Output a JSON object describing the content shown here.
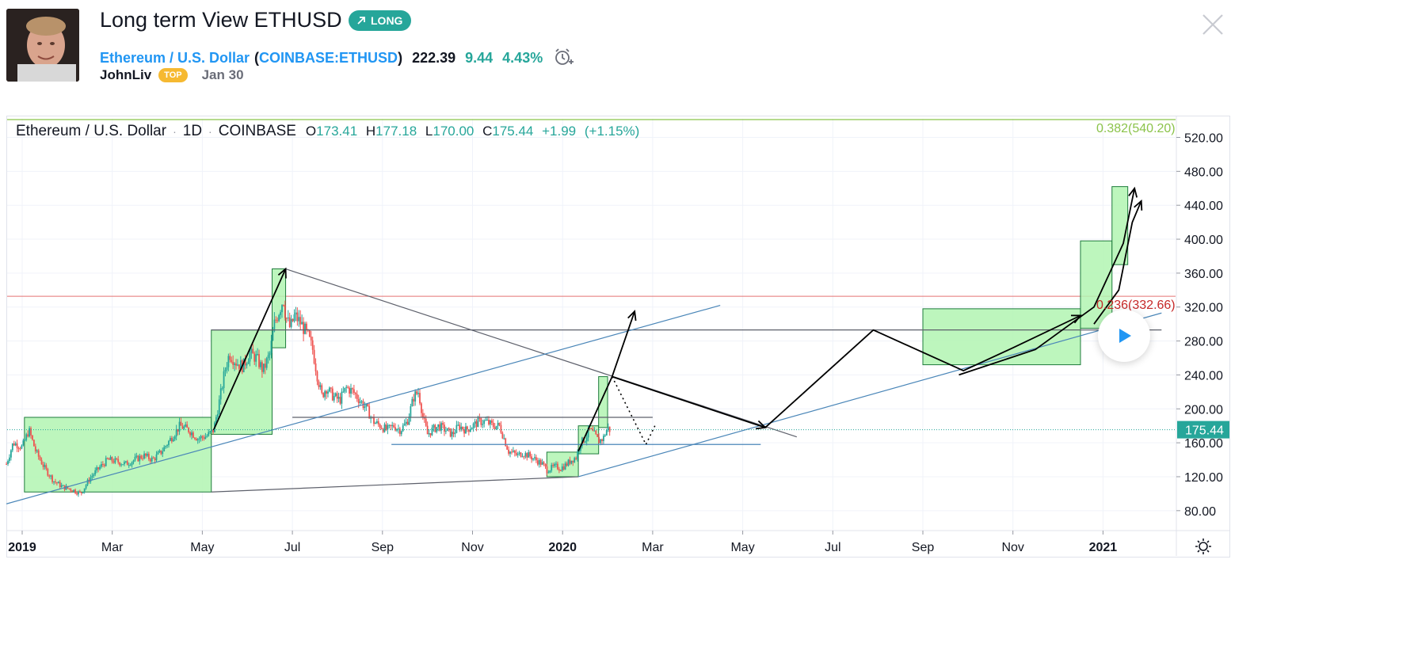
{
  "idea": {
    "title": "Long term View ETHUSD",
    "direction_label": "LONG",
    "symbol_name": "Ethereum / U.S. Dollar",
    "symbol_paren_open": "(",
    "symbol_code": "COINBASE:ETHUSD",
    "symbol_paren_close": ")",
    "price": "222.39",
    "change": "9.44",
    "change_pct": "4.43%",
    "author": "JohnLiv",
    "author_badge": "TOP",
    "date": "Jan 30",
    "icons": {
      "direction": "arrow-up-right-icon",
      "alarm": "alarm-clock-plus-icon",
      "close": "close-icon",
      "play": "play-icon",
      "settings": "gear-icon"
    }
  },
  "legend": {
    "symbol": "Ethereum / U.S. Dollar",
    "interval": "1D",
    "exchange": "COINBASE",
    "open_label": "O",
    "open": "173.41",
    "high_label": "H",
    "high": "177.18",
    "low_label": "L",
    "low": "170.00",
    "close_label": "C",
    "close": "175.44",
    "change": "+1.99",
    "change_pct": "(+1.15%)"
  },
  "colors": {
    "up": "#26a69a",
    "down": "#ef5350",
    "accent": "#2196f3",
    "box_fill": "#b2f5b2",
    "box_stroke": "#1e7b3c",
    "fib_038": "#8bc34a",
    "fib_024": "#e57373"
  },
  "chart_data": {
    "type": "candlestick",
    "symbol": "Ethereum / U.S. Dollar",
    "interval": "1D",
    "ylim": [
      65,
      545
    ],
    "y_ticks": [
      80,
      120,
      160,
      200,
      240,
      280,
      320,
      360,
      400,
      440,
      480,
      520
    ],
    "y_tick_labels": [
      "80.00",
      "120.00",
      "160.00",
      "200.00",
      "240.00",
      "280.00",
      "320.00",
      "360.00",
      "400.00",
      "440.00",
      "480.00",
      "520.00"
    ],
    "x_ticks": [
      {
        "label": "2019",
        "t": 0.0,
        "bold": true
      },
      {
        "label": "Mar",
        "t": 2.0
      },
      {
        "label": "May",
        "t": 4.0
      },
      {
        "label": "Jul",
        "t": 6.0
      },
      {
        "label": "Sep",
        "t": 8.0
      },
      {
        "label": "Nov",
        "t": 10.0
      },
      {
        "label": "2020",
        "t": 12.0,
        "bold": true
      },
      {
        "label": "Mar",
        "t": 14.0
      },
      {
        "label": "May",
        "t": 16.0
      },
      {
        "label": "Jul",
        "t": 18.0
      },
      {
        "label": "Sep",
        "t": 20.0
      },
      {
        "label": "Nov",
        "t": 22.0
      },
      {
        "label": "2021",
        "t": 24.0,
        "bold": true
      }
    ],
    "last_price": 175.44,
    "last_price_label": "175.44",
    "price_path": [
      [
        -0.35,
        135
      ],
      [
        -0.2,
        160
      ],
      [
        0,
        155
      ],
      [
        0.15,
        175
      ],
      [
        0.3,
        150
      ],
      [
        0.5,
        130
      ],
      [
        0.7,
        115
      ],
      [
        0.9,
        108
      ],
      [
        1.1,
        105
      ],
      [
        1.3,
        100
      ],
      [
        1.5,
        118
      ],
      [
        1.7,
        130
      ],
      [
        1.9,
        140
      ],
      [
        2.1,
        138
      ],
      [
        2.3,
        135
      ],
      [
        2.5,
        140
      ],
      [
        2.7,
        145
      ],
      [
        2.9,
        140
      ],
      [
        3.1,
        150
      ],
      [
        3.3,
        165
      ],
      [
        3.5,
        180
      ],
      [
        3.7,
        175
      ],
      [
        3.9,
        165
      ],
      [
        4.1,
        168
      ],
      [
        4.25,
        175
      ],
      [
        4.4,
        215
      ],
      [
        4.5,
        245
      ],
      [
        4.6,
        265
      ],
      [
        4.75,
        255
      ],
      [
        4.9,
        250
      ],
      [
        5.05,
        265
      ],
      [
        5.2,
        260
      ],
      [
        5.35,
        245
      ],
      [
        5.5,
        265
      ],
      [
        5.6,
        300
      ],
      [
        5.7,
        315
      ],
      [
        5.8,
        330
      ],
      [
        5.85,
        310
      ],
      [
        5.95,
        295
      ],
      [
        6.05,
        310
      ],
      [
        6.2,
        300
      ],
      [
        6.35,
        285
      ],
      [
        6.45,
        270
      ],
      [
        6.55,
        240
      ],
      [
        6.65,
        215
      ],
      [
        6.75,
        225
      ],
      [
        6.9,
        215
      ],
      [
        7.05,
        210
      ],
      [
        7.2,
        225
      ],
      [
        7.35,
        220
      ],
      [
        7.5,
        210
      ],
      [
        7.65,
        200
      ],
      [
        7.8,
        185
      ],
      [
        7.95,
        180
      ],
      [
        8.1,
        175
      ],
      [
        8.25,
        180
      ],
      [
        8.4,
        175
      ],
      [
        8.55,
        185
      ],
      [
        8.7,
        215
      ],
      [
        8.8,
        220
      ],
      [
        8.9,
        190
      ],
      [
        9.0,
        170
      ],
      [
        9.1,
        175
      ],
      [
        9.25,
        180
      ],
      [
        9.4,
        175
      ],
      [
        9.55,
        170
      ],
      [
        9.7,
        180
      ],
      [
        9.85,
        175
      ],
      [
        10.0,
        180
      ],
      [
        10.15,
        185
      ],
      [
        10.3,
        185
      ],
      [
        10.45,
        180
      ],
      [
        10.6,
        180
      ],
      [
        10.7,
        165
      ],
      [
        10.8,
        150
      ],
      [
        10.9,
        148
      ],
      [
        11.0,
        145
      ],
      [
        11.1,
        148
      ],
      [
        11.25,
        145
      ],
      [
        11.4,
        140
      ],
      [
        11.55,
        135
      ],
      [
        11.65,
        128
      ],
      [
        11.75,
        130
      ],
      [
        11.85,
        132
      ],
      [
        11.95,
        130
      ],
      [
        12.05,
        133
      ],
      [
        12.2,
        140
      ],
      [
        12.3,
        143
      ],
      [
        12.4,
        160
      ],
      [
        12.5,
        165
      ],
      [
        12.6,
        175
      ],
      [
        12.7,
        170
      ],
      [
        12.8,
        162
      ],
      [
        12.9,
        165
      ],
      [
        13.0,
        178
      ],
      [
        13.05,
        175
      ]
    ],
    "fib_levels": [
      {
        "label": "0.382(540.20)",
        "value": 540.2
      },
      {
        "label": "0.236(332.66)",
        "value": 332.66
      }
    ],
    "drawings": {
      "boxes": [
        {
          "t0": 0.05,
          "t1": 4.2,
          "p0": 102,
          "p1": 190
        },
        {
          "t0": 4.2,
          "t1": 5.55,
          "p0": 170,
          "p1": 293
        },
        {
          "t0": 5.55,
          "t1": 5.85,
          "p0": 272,
          "p1": 365
        },
        {
          "t0": 11.65,
          "t1": 12.35,
          "p0": 120,
          "p1": 149
        },
        {
          "t0": 12.35,
          "t1": 12.8,
          "p0": 147,
          "p1": 180
        },
        {
          "t0": 12.8,
          "t1": 13.0,
          "p0": 178,
          "p1": 238
        },
        {
          "t0": 20.0,
          "t1": 23.5,
          "p0": 252,
          "p1": 318
        },
        {
          "t0": 23.5,
          "t1": 24.2,
          "p0": 295,
          "p1": 398
        },
        {
          "t0": 24.2,
          "t1": 24.55,
          "p0": 370,
          "p1": 462
        }
      ],
      "gray_lines": [
        {
          "t0": 5.85,
          "p0": 365,
          "t1": 17.2,
          "p1": 167
        },
        {
          "t0": 4.2,
          "p0": 102,
          "t1": 12.35,
          "p1": 120
        },
        {
          "t0": 4.2,
          "p0": 293,
          "t1": 25.3,
          "p1": 293
        },
        {
          "t0": 6.0,
          "p0": 190,
          "t1": 14.0,
          "p1": 190
        }
      ],
      "blue_lines": [
        {
          "t0": -0.35,
          "p0": 88,
          "t1": 15.5,
          "p1": 322
        },
        {
          "t0": 12.35,
          "p0": 120,
          "t1": 25.3,
          "p1": 313
        },
        {
          "t0": 8.2,
          "p0": 158,
          "t1": 16.4,
          "p1": 158
        }
      ],
      "black_paths": [
        [
          [
            4.25,
            175
          ],
          [
            5.85,
            365
          ]
        ],
        [
          [
            12.35,
            150
          ],
          [
            13.1,
            238
          ],
          [
            13.6,
            315
          ]
        ],
        [
          [
            13.1,
            238
          ],
          [
            16.5,
            178
          ]
        ],
        [
          [
            16.5,
            178
          ],
          [
            18.9,
            293
          ],
          [
            20.9,
            245
          ],
          [
            22.0,
            272
          ],
          [
            23.5,
            310
          ]
        ],
        [
          [
            20.8,
            240
          ],
          [
            22.5,
            270
          ],
          [
            23.8,
            320
          ],
          [
            24.45,
            395
          ],
          [
            24.7,
            460
          ]
        ],
        [
          [
            23.8,
            300
          ],
          [
            24.35,
            340
          ],
          [
            24.65,
            420
          ],
          [
            24.85,
            445
          ]
        ]
      ],
      "dotted_path": [
        [
          13.1,
          238
        ],
        [
          13.85,
          158
        ],
        [
          14.05,
          180
        ]
      ]
    }
  }
}
